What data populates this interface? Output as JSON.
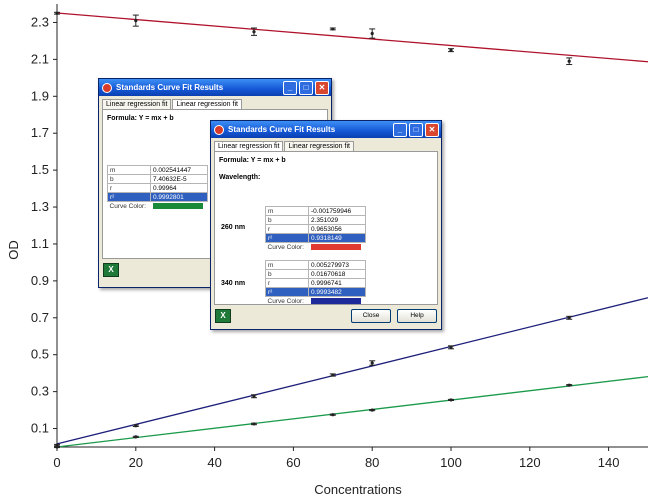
{
  "chart_data": {
    "type": "line",
    "title": "",
    "xlabel": "Concentrations",
    "ylabel": "OD",
    "xlim": [
      0,
      150
    ],
    "ylim": [
      0,
      2.4
    ],
    "xticks": [
      0,
      20,
      40,
      60,
      80,
      100,
      120,
      140
    ],
    "yticks": [
      0.1,
      0.3,
      0.5,
      0.7,
      0.9,
      1.1,
      1.3,
      1.5,
      1.7,
      1.9,
      2.1,
      2.3
    ],
    "grid": false,
    "series": [
      {
        "color": "#b0122c",
        "fit": {
          "slope": -0.001759946,
          "intercept": 2.351029
        },
        "points": [
          {
            "x": 0,
            "y": 2.35,
            "err": 0.005
          },
          {
            "x": 20,
            "y": 2.31,
            "err": 0.03
          },
          {
            "x": 50,
            "y": 2.25,
            "err": 0.02
          },
          {
            "x": 70,
            "y": 2.265,
            "err": 0.005
          },
          {
            "x": 80,
            "y": 2.24,
            "err": 0.025
          },
          {
            "x": 100,
            "y": 2.15,
            "err": 0.008
          },
          {
            "x": 130,
            "y": 2.09,
            "err": 0.018
          }
        ]
      },
      {
        "color": "#1d1f7a",
        "fit": {
          "slope": 0.005279973,
          "intercept": 0.01670618
        },
        "points": [
          {
            "x": 0,
            "y": 0.01,
            "err": 0.004
          },
          {
            "x": 20,
            "y": 0.115,
            "err": 0.004
          },
          {
            "x": 50,
            "y": 0.275,
            "err": 0.008
          },
          {
            "x": 70,
            "y": 0.39,
            "err": 0.006
          },
          {
            "x": 80,
            "y": 0.455,
            "err": 0.012
          },
          {
            "x": 100,
            "y": 0.54,
            "err": 0.008
          },
          {
            "x": 130,
            "y": 0.7,
            "err": 0.008
          }
        ]
      },
      {
        "color": "#1a9a4a",
        "fit": {
          "slope": 0.002541447,
          "intercept": 7.40632e-05
        },
        "points": [
          {
            "x": 0,
            "y": 0.0,
            "err": 0.003
          },
          {
            "x": 20,
            "y": 0.055,
            "err": 0.003
          },
          {
            "x": 50,
            "y": 0.125,
            "err": 0.004
          },
          {
            "x": 70,
            "y": 0.175,
            "err": 0.003
          },
          {
            "x": 80,
            "y": 0.2,
            "err": 0.003
          },
          {
            "x": 100,
            "y": 0.255,
            "err": 0.003
          },
          {
            "x": 130,
            "y": 0.335,
            "err": 0.003
          }
        ]
      }
    ]
  },
  "dialog1": {
    "title": "Standards Curve Fit Results",
    "tabs": [
      "Linear regression fit",
      "Linear regression fit"
    ],
    "formula": "Formula: Y = mx + b",
    "rows": [
      {
        "k": "m",
        "v": "0.002541447"
      },
      {
        "k": "b",
        "v": "7.40632E-5"
      },
      {
        "k": "r",
        "v": "0.99964"
      },
      {
        "k": "r²",
        "v": "0.9992801"
      }
    ],
    "curve_color_label": "Curve Color:",
    "curve_color": "#1a8a3a"
  },
  "dialog2": {
    "title": "Standards Curve Fit Results",
    "tabs": [
      "Linear regression fit",
      "Linear regression fit"
    ],
    "formula": "Formula: Y = mx + b",
    "wavelength_label": "Wavelength:",
    "wl1": {
      "label": "260 nm",
      "rows": [
        {
          "k": "m",
          "v": "-0.001759946"
        },
        {
          "k": "b",
          "v": "2.351029"
        },
        {
          "k": "r",
          "v": "0.9653056"
        },
        {
          "k": "r²",
          "v": "0.9318149"
        }
      ],
      "curve_color": "#e03a2e"
    },
    "wl2": {
      "label": "340 nm",
      "rows": [
        {
          "k": "m",
          "v": "0.005279973"
        },
        {
          "k": "b",
          "v": "0.01670618"
        },
        {
          "k": "r",
          "v": "0.9996741"
        },
        {
          "k": "r²",
          "v": "0.9993482"
        }
      ],
      "curve_color": "#1d2a9a"
    },
    "curve_color_label": "Curve Color:",
    "close_label": "Close",
    "help_label": "Help"
  }
}
